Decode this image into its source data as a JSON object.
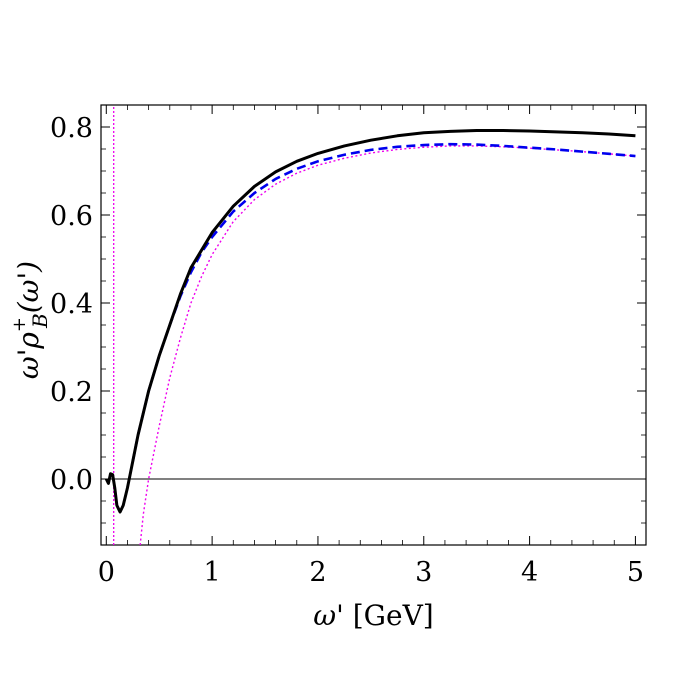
{
  "chart_data": {
    "type": "line",
    "xlabel": "ω' [GeV]",
    "ylabel": "ω'ρB+(ω')",
    "xlim": [
      -0.05,
      5.1
    ],
    "ylim": [
      -0.15,
      0.85
    ],
    "x_ticks": [
      "0",
      "1",
      "2",
      "3",
      "4",
      "5"
    ],
    "y_ticks": [
      "0.8",
      "0.6",
      "0.4",
      "0.2",
      "0.0"
    ],
    "y_tick_values": [
      0.8,
      0.6,
      0.4,
      0.2,
      0.0
    ],
    "x_tick_values": [
      0,
      1,
      2,
      3,
      4,
      5
    ],
    "grid": false,
    "series": [
      {
        "style": "solid",
        "color": "#000000",
        "points": [
          [
            0.0,
            0.0
          ],
          [
            0.02,
            -0.01
          ],
          [
            0.04,
            0.012
          ],
          [
            0.06,
            0.01
          ],
          [
            0.08,
            -0.02
          ],
          [
            0.1,
            -0.06
          ],
          [
            0.13,
            -0.075
          ],
          [
            0.16,
            -0.06
          ],
          [
            0.2,
            -0.02
          ],
          [
            0.25,
            0.04
          ],
          [
            0.3,
            0.1
          ],
          [
            0.4,
            0.2
          ],
          [
            0.5,
            0.28
          ],
          [
            0.6,
            0.35
          ],
          [
            0.7,
            0.42
          ],
          [
            0.8,
            0.48
          ],
          [
            0.9,
            0.52
          ],
          [
            1.0,
            0.56
          ],
          [
            1.2,
            0.62
          ],
          [
            1.4,
            0.665
          ],
          [
            1.6,
            0.698
          ],
          [
            1.8,
            0.722
          ],
          [
            2.0,
            0.74
          ],
          [
            2.25,
            0.757
          ],
          [
            2.5,
            0.77
          ],
          [
            2.75,
            0.78
          ],
          [
            3.0,
            0.787
          ],
          [
            3.25,
            0.79
          ],
          [
            3.5,
            0.792
          ],
          [
            3.75,
            0.792
          ],
          [
            4.0,
            0.791
          ],
          [
            4.25,
            0.789
          ],
          [
            4.5,
            0.787
          ],
          [
            4.75,
            0.784
          ],
          [
            5.0,
            0.78
          ]
        ]
      },
      {
        "style": "dashed",
        "color": "#0000ee",
        "points": [
          [
            0.25,
            0.04
          ],
          [
            0.3,
            0.1
          ],
          [
            0.4,
            0.2
          ],
          [
            0.5,
            0.28
          ],
          [
            0.6,
            0.35
          ],
          [
            0.7,
            0.415
          ],
          [
            0.8,
            0.47
          ],
          [
            0.9,
            0.515
          ],
          [
            1.0,
            0.55
          ],
          [
            1.2,
            0.608
          ],
          [
            1.4,
            0.65
          ],
          [
            1.6,
            0.682
          ],
          [
            1.8,
            0.705
          ],
          [
            2.0,
            0.722
          ],
          [
            2.25,
            0.737
          ],
          [
            2.5,
            0.748
          ],
          [
            2.75,
            0.755
          ],
          [
            3.0,
            0.759
          ],
          [
            3.25,
            0.761
          ],
          [
            3.5,
            0.76
          ],
          [
            3.75,
            0.757
          ],
          [
            4.0,
            0.753
          ],
          [
            4.25,
            0.749
          ],
          [
            4.5,
            0.744
          ],
          [
            4.75,
            0.739
          ],
          [
            5.0,
            0.734
          ]
        ]
      },
      {
        "style": "dotted",
        "color": "#ee00ee",
        "points": [
          [
            0.32,
            -0.15
          ],
          [
            0.35,
            -0.08
          ],
          [
            0.4,
            0.0
          ],
          [
            0.5,
            0.12
          ],
          [
            0.6,
            0.23
          ],
          [
            0.7,
            0.32
          ],
          [
            0.8,
            0.4
          ],
          [
            0.9,
            0.46
          ],
          [
            1.0,
            0.51
          ],
          [
            1.2,
            0.585
          ],
          [
            1.4,
            0.635
          ],
          [
            1.6,
            0.67
          ],
          [
            1.8,
            0.695
          ],
          [
            2.0,
            0.713
          ],
          [
            2.25,
            0.729
          ],
          [
            2.5,
            0.741
          ],
          [
            2.75,
            0.749
          ],
          [
            3.0,
            0.754
          ],
          [
            3.25,
            0.757
          ],
          [
            3.5,
            0.757
          ],
          [
            3.75,
            0.755
          ],
          [
            4.0,
            0.752
          ],
          [
            4.25,
            0.748
          ],
          [
            4.5,
            0.744
          ],
          [
            4.75,
            0.739
          ],
          [
            5.0,
            0.734
          ]
        ]
      },
      {
        "style": "dotted-vertical",
        "color": "#ee00ee",
        "points": [
          [
            0.07,
            -0.15
          ],
          [
            0.07,
            0.85
          ]
        ]
      }
    ],
    "reference_line": {
      "y": 0.0,
      "color": "#000000"
    }
  }
}
